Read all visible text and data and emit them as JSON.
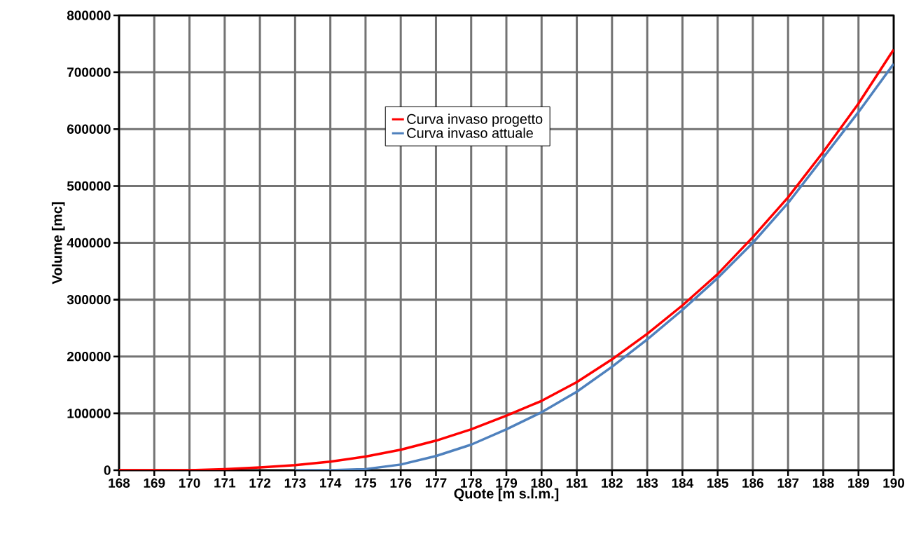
{
  "chart_data": {
    "type": "line",
    "xlabel": "Quote [m s.l.m.]",
    "ylabel": "Volume [mc]",
    "x": [
      168,
      169,
      170,
      171,
      172,
      173,
      174,
      175,
      176,
      177,
      178,
      179,
      180,
      181,
      182,
      183,
      184,
      185,
      186,
      187,
      188,
      189,
      190
    ],
    "series": [
      {
        "name": "Curva invaso progetto",
        "color": "#ff0000",
        "values": [
          0,
          0,
          0,
          2000,
          5000,
          9000,
          15000,
          24000,
          36000,
          52000,
          72000,
          96000,
          122000,
          155000,
          195000,
          240000,
          290000,
          345000,
          410000,
          480000,
          560000,
          645000,
          740000
        ]
      },
      {
        "name": "Curva invaso attuale",
        "color": "#4f81bd",
        "values": [
          null,
          null,
          null,
          null,
          null,
          0,
          0,
          2000,
          10000,
          25000,
          45000,
          72000,
          102000,
          138000,
          182000,
          230000,
          282000,
          338000,
          400000,
          470000,
          550000,
          630000,
          715000
        ]
      }
    ],
    "xlim": [
      168,
      190
    ],
    "ylim": [
      0,
      800000
    ],
    "xticks": [
      168,
      169,
      170,
      171,
      172,
      173,
      174,
      175,
      176,
      177,
      178,
      179,
      180,
      181,
      182,
      183,
      184,
      185,
      186,
      187,
      188,
      189,
      190
    ],
    "yticks": [
      0,
      100000,
      200000,
      300000,
      400000,
      500000,
      600000,
      700000,
      800000
    ],
    "grid": true,
    "legend": "top",
    "marker": "none",
    "line_style": "solid"
  }
}
